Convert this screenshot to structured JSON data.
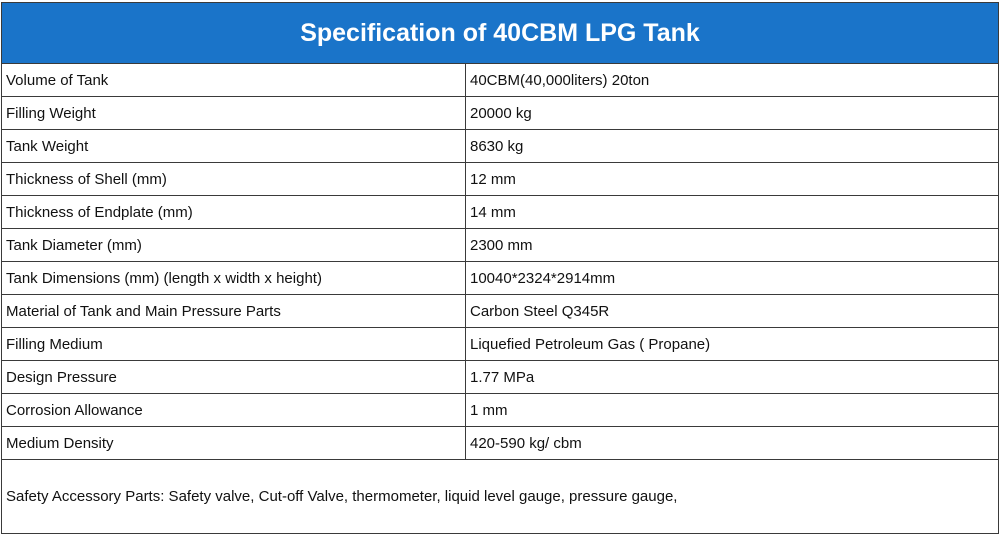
{
  "title": "Specification of 40CBM LPG Tank",
  "rows": [
    {
      "label": "Volume of Tank",
      "value": "40CBM(40,000liters) 20ton"
    },
    {
      "label": "Filling Weight",
      "value": "20000 kg"
    },
    {
      "label": "Tank Weight",
      "value": "8630 kg"
    },
    {
      "label": "Thickness of Shell (mm)",
      "value": "12 mm"
    },
    {
      "label": "Thickness of Endplate (mm)",
      "value": "14 mm"
    },
    {
      "label": "Tank Diameter (mm)",
      "value": "2300 mm"
    },
    {
      "label": "Tank Dimensions (mm) (length x width x height)",
      "value": "10040*2324*2914mm"
    },
    {
      "label": "Material of Tank and Main Pressure Parts",
      "value": "Carbon Steel Q345R"
    },
    {
      "label": "Filling Medium",
      "value": "Liquefied Petroleum Gas ( Propane)"
    },
    {
      "label": "Design Pressure",
      "value": "1.77 MPa"
    },
    {
      "label": "Corrosion Allowance",
      "value": "1 mm"
    },
    {
      "label": "Medium Density",
      "value": "420-590 kg/ cbm"
    }
  ],
  "footer": "Safety Accessory Parts: Safety valve, Cut-off Valve, thermometer, liquid level gauge, pressure gauge,",
  "colors": {
    "header_background": "#1a74c9",
    "header_text": "#ffffff",
    "border": "#3a3a3a"
  }
}
